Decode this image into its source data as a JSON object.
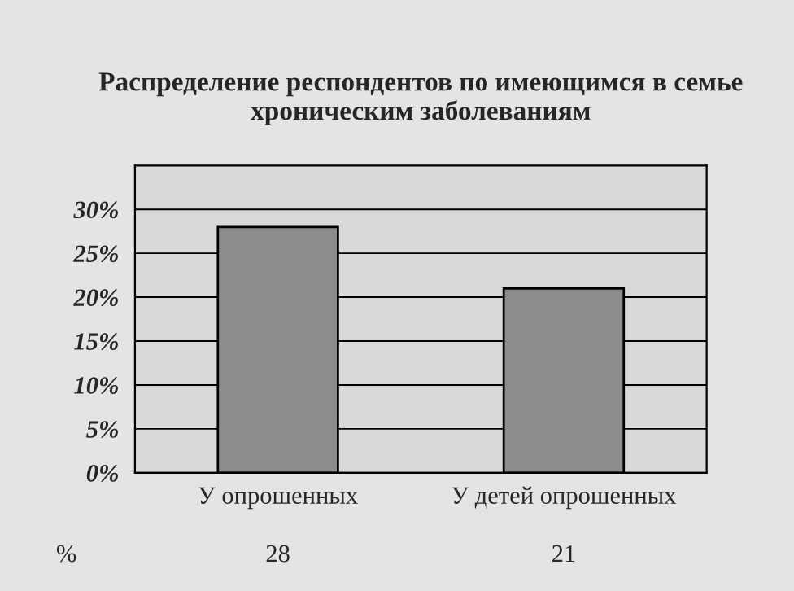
{
  "chart_data": {
    "type": "bar",
    "title": "Распределение респондентов по имеющимся в семье хроническим заболеваниям",
    "categories": [
      "У опрошенных",
      "У детей опрошенных"
    ],
    "values": [
      28,
      21
    ],
    "color": "#8c8c8c",
    "ylim": [
      0,
      35
    ],
    "yticks": [
      {
        "value": 0,
        "label": "0%"
      },
      {
        "value": 5,
        "label": "5%"
      },
      {
        "value": 10,
        "label": "10%"
      },
      {
        "value": 15,
        "label": "15%"
      },
      {
        "value": 20,
        "label": "20%"
      },
      {
        "value": 25,
        "label": "25%"
      },
      {
        "value": 30,
        "label": "30%"
      }
    ],
    "grid": "y",
    "data_labels": true,
    "annotations": [
      "%"
    ]
  }
}
